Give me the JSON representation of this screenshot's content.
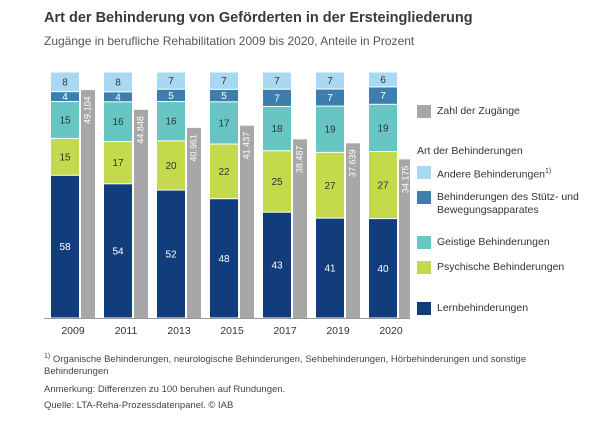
{
  "title": "Art der Behinderung von Geförderten in der Ersteingliederung",
  "subtitle": "Zugänge in berufliche Rehabilitation 2009 bis 2020, Anteile in Prozent",
  "chart_data": {
    "type": "bar",
    "stacked": true,
    "categories": [
      "2009",
      "2011",
      "2013",
      "2015",
      "2017",
      "2019",
      "2020"
    ],
    "series": [
      {
        "name": "Lernbehinderungen",
        "color": "#123d7c",
        "values": [
          58,
          54,
          52,
          48,
          43,
          41,
          40
        ]
      },
      {
        "name": "Psychische Behinderungen",
        "color": "#c5d94c",
        "values": [
          15,
          17,
          20,
          22,
          25,
          27,
          27
        ]
      },
      {
        "name": "Geistige Behinderungen",
        "color": "#67c6c4",
        "values": [
          15,
          16,
          16,
          17,
          18,
          19,
          19
        ]
      },
      {
        "name": "Behinderungen des Stütz- und Bewegungsapparates",
        "color": "#3c7fae",
        "values": [
          4,
          4,
          5,
          5,
          7,
          7,
          7
        ]
      },
      {
        "name": "Andere Behinderungen",
        "color": "#a9d8f2",
        "values": [
          8,
          8,
          7,
          7,
          7,
          7,
          6
        ]
      }
    ],
    "totals": {
      "name": "Zahl der Zugänge",
      "color": "#a7a7a7",
      "values": [
        49104,
        44848,
        40961,
        41437,
        38487,
        37639,
        34175
      ],
      "labels": [
        "49.104",
        "44.848",
        "40.961",
        "41.437",
        "38.487",
        "37.639",
        "34.175"
      ],
      "ylim": [
        0,
        53000
      ]
    },
    "ylim": [
      0,
      100
    ]
  },
  "legend": {
    "totals_label": "Zahl der Zugänge",
    "heading": "Art der Behinderungen",
    "items": [
      {
        "label": "Andere Behinderungen",
        "sup": "1)",
        "color": "#a9d8f2"
      },
      {
        "label": "Behinderungen des Stütz- und Bewegungsapparates",
        "sup": "",
        "color": "#3c7fae"
      },
      {
        "label": "Geistige Behinderungen",
        "sup": "",
        "color": "#67c6c4"
      },
      {
        "label": "Psychische Behinderungen",
        "sup": "",
        "color": "#c5d94c"
      },
      {
        "label": "Lernbehinderungen",
        "sup": "",
        "color": "#123d7c"
      }
    ]
  },
  "footnotes": {
    "marker": "1)",
    "note": "Organische Behinderungen, neurologische Behinderungen, Sehbehinderungen, Hörbehinderungen und sonstige Behinderungen",
    "remark": "Anmerkung: Differenzen zu 100 beruhen auf Rundungen.",
    "source": "Quelle: LTA-Reha-Prozessdatenpanel.  © IAB"
  }
}
